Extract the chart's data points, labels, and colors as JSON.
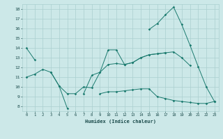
{
  "xlabel": "Humidex (Indice chaleur)",
  "x_values": [
    0,
    1,
    2,
    3,
    4,
    5,
    6,
    7,
    8,
    9,
    10,
    11,
    12,
    13,
    14,
    15,
    16,
    17,
    18,
    19,
    20,
    21,
    22,
    23
  ],
  "line1": [
    14.0,
    12.8,
    null,
    11.5,
    10.1,
    7.8,
    null,
    9.3,
    11.2,
    11.5,
    13.8,
    13.8,
    12.3,
    null,
    null,
    15.9,
    16.5,
    17.4,
    18.2,
    16.4,
    14.3,
    12.1,
    10.0,
    8.5
  ],
  "line2": [
    11.0,
    11.3,
    11.8,
    11.5,
    10.1,
    9.3,
    9.3,
    10.0,
    9.9,
    11.5,
    12.3,
    12.4,
    12.3,
    12.5,
    13.0,
    13.3,
    13.4,
    13.5,
    null,
    null,
    null,
    null,
    null,
    null
  ],
  "line4": [
    null,
    null,
    null,
    null,
    null,
    null,
    null,
    null,
    null,
    null,
    null,
    null,
    12.3,
    12.5,
    13.0,
    13.3,
    13.4,
    13.5,
    13.6,
    13.0,
    12.2,
    null,
    null,
    8.5
  ],
  "line5": [
    null,
    null,
    null,
    null,
    null,
    null,
    null,
    null,
    null,
    9.3,
    9.5,
    9.5,
    9.6,
    9.7,
    9.8,
    9.8,
    9.0,
    8.8,
    8.6,
    8.5,
    8.4,
    8.3,
    8.3,
    8.5
  ],
  "ylim": [
    7.5,
    18.5
  ],
  "xlim": [
    -0.5,
    23.5
  ],
  "yticks": [
    8,
    9,
    10,
    11,
    12,
    13,
    14,
    15,
    16,
    17,
    18
  ],
  "xticks": [
    0,
    1,
    2,
    3,
    4,
    5,
    6,
    7,
    8,
    9,
    10,
    11,
    12,
    13,
    14,
    15,
    16,
    17,
    18,
    19,
    20,
    21,
    22,
    23
  ],
  "line_color": "#1a7a6e",
  "bg_color": "#cce8e8",
  "grid_color": "#aacfcf",
  "font_color": "#1a4a4a"
}
